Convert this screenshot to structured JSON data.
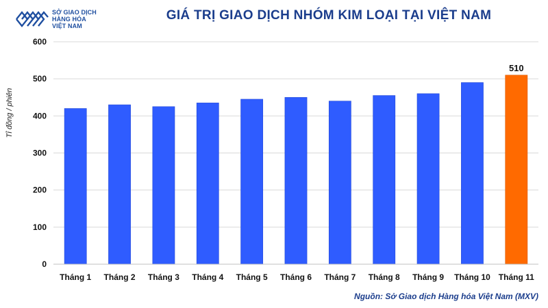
{
  "logo": {
    "icon": "mxv-chevron-logo-icon",
    "line1": "SỞ GIAO DỊCH",
    "line2": "HÀNG HÓA",
    "line3": "VIỆT NAM",
    "color": "#1f4fa0"
  },
  "source": "Nguồn: Sở Giao dịch Hàng hóa Việt Nam (MXV)",
  "chart_data": {
    "type": "bar",
    "title": "GIÁ TRỊ GIAO DỊCH NHÓM KIM LOẠI TẠI VIỆT NAM",
    "xlabel": "",
    "ylabel": "Tỉ đồng / phiên",
    "categories": [
      "Tháng 1",
      "Tháng 2",
      "Tháng 3",
      "Tháng 4",
      "Tháng 5",
      "Tháng 6",
      "Tháng 7",
      "Tháng 8",
      "Tháng 9",
      "Tháng 10",
      "Tháng 11"
    ],
    "values": [
      420,
      430,
      425,
      435,
      445,
      450,
      440,
      455,
      460,
      490,
      510
    ],
    "ylim": [
      0,
      600
    ],
    "yticks": [
      0,
      100,
      200,
      300,
      400,
      500,
      600
    ],
    "grid": true,
    "bar_color": "#2f5cff",
    "highlight_color": "#ff6a00",
    "highlight_index": 10,
    "data_labels": [
      {
        "index": 10,
        "text": "510"
      }
    ]
  }
}
